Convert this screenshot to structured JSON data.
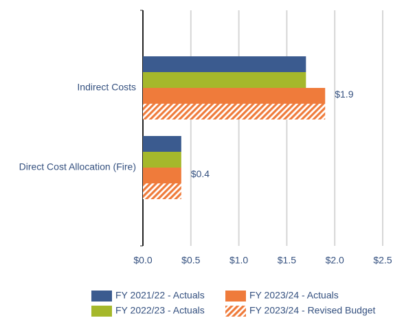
{
  "chart_data": {
    "type": "barh",
    "categories": [
      "Indirect Costs",
      "Direct Cost Allocation (Fire)"
    ],
    "series": [
      {
        "name": "FY 2021/22 - Actuals",
        "color": "#3b5b8f",
        "values": [
          1.7,
          0.4
        ]
      },
      {
        "name": "FY 2022/23 - Actuals",
        "color": "#a5b82b",
        "values": [
          1.7,
          0.4
        ]
      },
      {
        "name": "FY 2023/24 - Actuals",
        "color": "#ef7b3b",
        "values": [
          1.9,
          0.4
        ],
        "value_labels": [
          "$1.9",
          "$0.4"
        ]
      },
      {
        "name": "FY 2023/24 - Revised Budget",
        "color": "#ef7b3b",
        "hatch": true,
        "values": [
          1.9,
          0.4
        ]
      }
    ],
    "xlim": [
      0,
      2.5
    ],
    "xticks": [
      {
        "value": 0,
        "label": "$0.0"
      },
      {
        "value": 0.5,
        "label": "$0.5"
      },
      {
        "value": 1,
        "label": "$1.0"
      },
      {
        "value": 1.5,
        "label": "$1.5"
      },
      {
        "value": 2,
        "label": "$2.0"
      },
      {
        "value": 2.5,
        "label": "$2.5"
      }
    ],
    "grid": true,
    "legend": "bottom"
  }
}
